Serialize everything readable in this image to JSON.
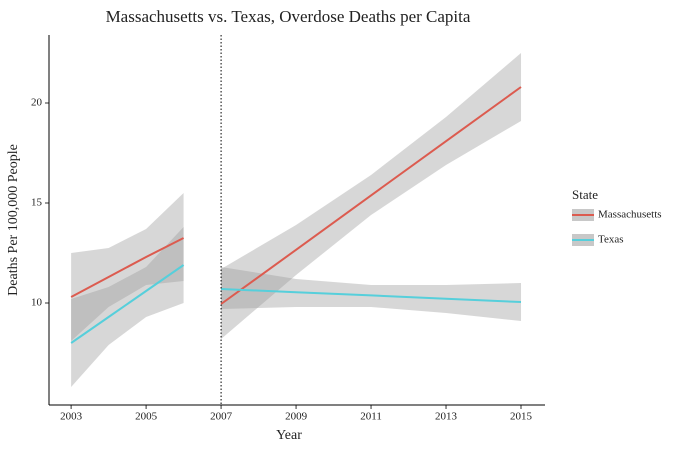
{
  "chart_data": {
    "type": "line",
    "title": "Massachusetts vs. Texas, Overdose Deaths per Capita",
    "x_label": "Year",
    "y_label": "Deaths Per 100,000 People",
    "legend_title": "State",
    "xlim": [
      2002.41,
      2015.64
    ],
    "ylim": [
      4.9,
      23.4
    ],
    "xticks": [
      2003,
      2005,
      2007,
      2009,
      2011,
      2013,
      2015
    ],
    "yticks": [
      10,
      15,
      20
    ],
    "vline": 2007,
    "band_color": "#9a9a9a",
    "series": [
      {
        "name": "Massachusetts",
        "color": "#dc5b4f",
        "segments": [
          {
            "x": [
              2003,
              2004,
              2005,
              2006
            ],
            "values": [
              10.3,
              11.3,
              12.3,
              13.25
            ],
            "lower": [
              8.1,
              9.8,
              10.9,
              11.1
            ],
            "upper": [
              12.5,
              12.75,
              13.7,
              15.5
            ]
          },
          {
            "x": [
              2007,
              2009,
              2011,
              2013,
              2015
            ],
            "values": [
              9.95,
              12.66,
              15.38,
              18.09,
              20.8
            ],
            "lower": [
              8.2,
              11.4,
              14.4,
              16.9,
              19.1
            ],
            "upper": [
              11.7,
              13.9,
              16.4,
              19.3,
              22.5
            ]
          }
        ]
      },
      {
        "name": "Texas",
        "color": "#56cfdb",
        "segments": [
          {
            "x": [
              2003,
              2004,
              2005,
              2006
            ],
            "values": [
              8.0,
              9.3,
              10.6,
              11.9
            ],
            "lower": [
              5.8,
              7.9,
              9.3,
              10.0
            ],
            "upper": [
              10.2,
              10.8,
              11.8,
              13.8
            ]
          },
          {
            "x": [
              2007,
              2009,
              2011,
              2013,
              2015
            ],
            "values": [
              10.7,
              10.54,
              10.38,
              10.21,
              10.05
            ],
            "lower": [
              9.7,
              9.8,
              9.8,
              9.5,
              9.1
            ],
            "upper": [
              11.8,
              11.2,
              10.9,
              10.9,
              11.0
            ]
          }
        ]
      }
    ]
  }
}
